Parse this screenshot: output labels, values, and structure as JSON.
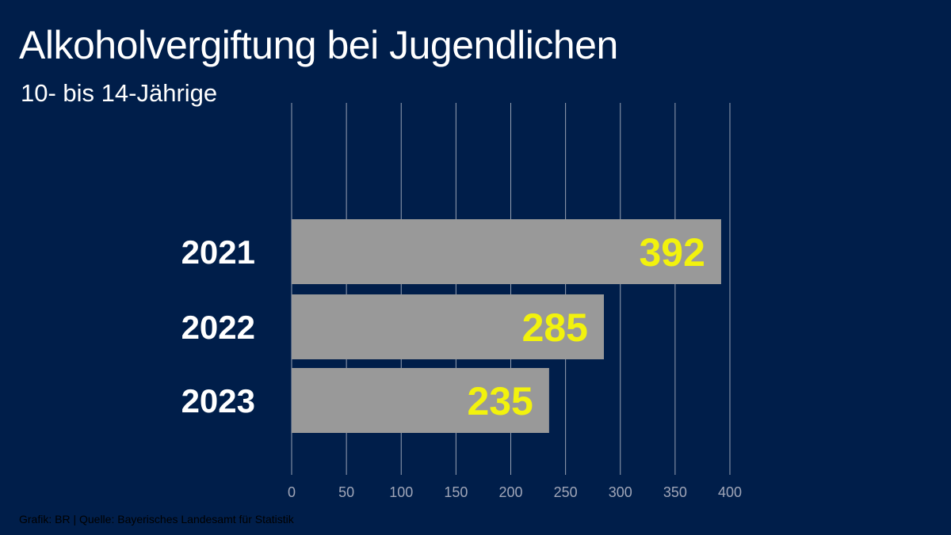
{
  "header": {
    "title": "Alkoholvergiftung bei Jugendlichen",
    "subtitle": "10- bis 14-Jährige"
  },
  "footer": {
    "credit": "Grafik: BR | Quelle: Bayerisches Landesamt für Statistik"
  },
  "colors": {
    "background": "#001e4a",
    "bar": "#999999",
    "value_label": "#f2f20d",
    "gridline": "#c8ccd6",
    "text": "#ffffff"
  },
  "chart_data": {
    "type": "bar",
    "orientation": "horizontal",
    "title": "Alkoholvergiftung bei Jugendlichen",
    "subtitle": "10- bis 14-Jährige",
    "categories": [
      "2021",
      "2022",
      "2023"
    ],
    "values": [
      392,
      285,
      235
    ],
    "value_labels": [
      "392",
      "285",
      "235"
    ],
    "xlim": [
      0,
      400
    ],
    "ticks": [
      0,
      50,
      100,
      150,
      200,
      250,
      300,
      350,
      400
    ],
    "tick_labels": [
      "0",
      "50",
      "100",
      "150",
      "200",
      "250",
      "300",
      "350",
      "400"
    ],
    "grid": true,
    "legend": "none"
  }
}
